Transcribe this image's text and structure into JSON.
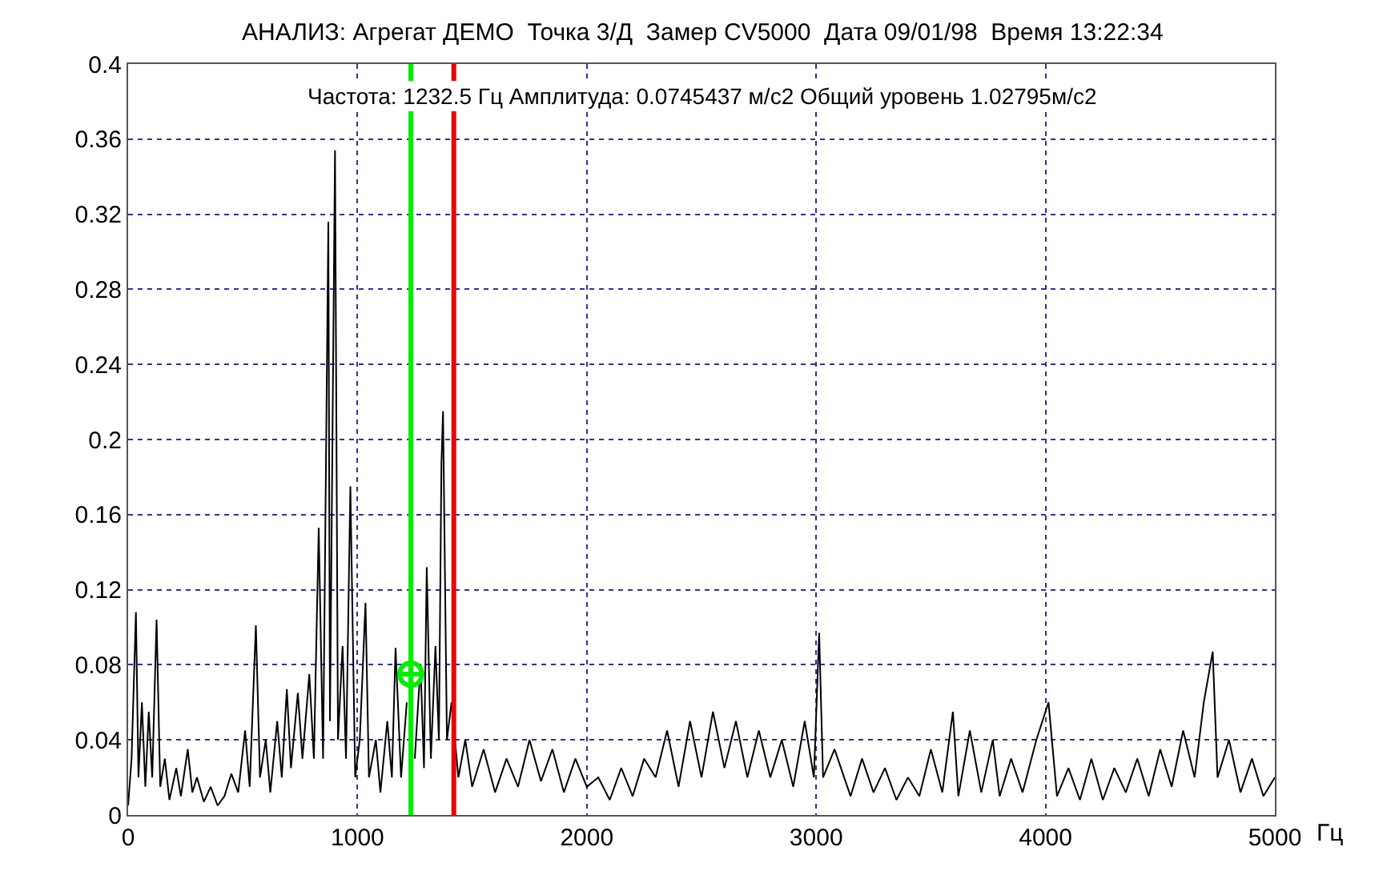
{
  "chart_data": {
    "type": "line",
    "title": "АНАЛИЗ: Агрегат ДЕМО  Точка 3/Д  Замер CV5000  Дата 09/01/98  Время 13:22:34",
    "subtitle": "Частота: 1232.5 Гц Амплитуда: 0.0745437 м/с2 Общий уровень 1.02795м/с2",
    "xlabel": "Гц",
    "series": [
      {
        "color": "#000000",
        "x": [
          0,
          15,
          34,
          45,
          60,
          75,
          90,
          105,
          124,
          140,
          160,
          180,
          210,
          230,
          260,
          280,
          300,
          330,
          360,
          390,
          420,
          450,
          480,
          510,
          530,
          557,
          575,
          600,
          620,
          650,
          670,
          692,
          710,
          740,
          760,
          790,
          810,
          831,
          850,
          873,
          880,
          902,
          915,
          935,
          950,
          969,
          990,
          1010,
          1035,
          1050,
          1080,
          1100,
          1130,
          1150,
          1166,
          1190,
          1215,
          1232,
          1250,
          1275,
          1290,
          1302,
          1320,
          1340,
          1355,
          1366,
          1373,
          1390,
          1410,
          1440,
          1470,
          1500,
          1550,
          1600,
          1650,
          1700,
          1750,
          1800,
          1850,
          1900,
          1950,
          2000,
          2050,
          2100,
          2150,
          2200,
          2250,
          2300,
          2350,
          2400,
          2450,
          2500,
          2550,
          2600,
          2650,
          2700,
          2750,
          2800,
          2850,
          2900,
          2950,
          2990,
          3013,
          3030,
          3080,
          3150,
          3200,
          3250,
          3300,
          3350,
          3400,
          3450,
          3500,
          3550,
          3596,
          3620,
          3670,
          3720,
          3770,
          3800,
          3850,
          3900,
          3960,
          4013,
          4050,
          4100,
          4150,
          4200,
          4250,
          4300,
          4350,
          4400,
          4450,
          4500,
          4550,
          4600,
          4650,
          4690,
          4729,
          4750,
          4800,
          4850,
          4900,
          4950,
          5000
        ],
        "values": [
          0.005,
          0.03,
          0.108,
          0.02,
          0.06,
          0.015,
          0.055,
          0.02,
          0.104,
          0.015,
          0.03,
          0.008,
          0.025,
          0.01,
          0.035,
          0.012,
          0.02,
          0.007,
          0.015,
          0.005,
          0.01,
          0.022,
          0.012,
          0.045,
          0.015,
          0.101,
          0.02,
          0.04,
          0.012,
          0.05,
          0.02,
          0.067,
          0.025,
          0.065,
          0.03,
          0.075,
          0.03,
          0.153,
          0.03,
          0.316,
          0.05,
          0.354,
          0.04,
          0.09,
          0.03,
          0.175,
          0.02,
          0.04,
          0.113,
          0.02,
          0.04,
          0.012,
          0.05,
          0.02,
          0.089,
          0.02,
          0.06,
          null,
          0.03,
          0.08,
          0.025,
          0.132,
          0.03,
          0.09,
          0.04,
          0.187,
          0.215,
          0.04,
          0.06,
          0.02,
          0.04,
          0.015,
          0.035,
          0.012,
          0.03,
          0.015,
          0.04,
          0.018,
          0.035,
          0.012,
          0.03,
          0.015,
          0.02,
          0.008,
          0.025,
          0.01,
          0.03,
          0.02,
          0.045,
          0.015,
          0.05,
          0.02,
          0.055,
          0.025,
          0.05,
          0.02,
          0.045,
          0.02,
          0.04,
          0.015,
          0.05,
          0.02,
          0.097,
          0.02,
          0.035,
          0.01,
          0.03,
          0.012,
          0.025,
          0.008,
          0.02,
          0.01,
          0.035,
          0.012,
          0.055,
          0.01,
          0.045,
          0.012,
          0.04,
          0.01,
          0.03,
          0.012,
          0.04,
          0.06,
          0.01,
          0.025,
          0.008,
          0.03,
          0.008,
          0.025,
          0.012,
          0.03,
          0.01,
          0.035,
          0.015,
          0.045,
          0.02,
          0.06,
          0.087,
          0.02,
          0.04,
          0.012,
          0.03,
          0.01,
          0.02
        ]
      },
      {
        "type": "scatter",
        "color": "#00ee00",
        "marker": "cross",
        "x": [
          1232.5
        ],
        "values": [
          0.075
        ]
      }
    ],
    "ref_lines": [
      {
        "axis": "x",
        "value": 1232.5,
        "color": "#00ee00"
      },
      {
        "axis": "x",
        "value": 1420,
        "color": "#ee0000"
      }
    ],
    "xlim": [
      0,
      5000
    ],
    "xticks": [
      0,
      1000,
      2000,
      3000,
      4000,
      5000
    ],
    "ylim": [
      0,
      0.4
    ],
    "yticks": [
      0,
      0.04,
      0.08,
      0.12,
      0.16,
      0.2,
      0.24,
      0.28,
      0.32,
      0.36,
      0.4
    ],
    "grid": true,
    "legend": false
  }
}
